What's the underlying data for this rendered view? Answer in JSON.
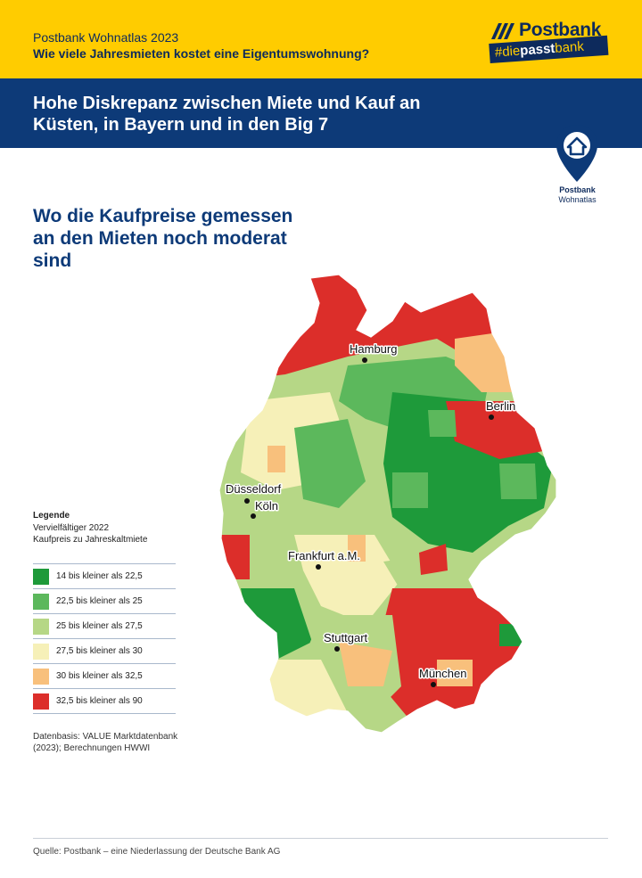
{
  "header": {
    "kicker": "Postbank Wohnatlas 2023",
    "question": "Wie viele Jahresmieten kostet eine Eigentumswohnung?",
    "headline": "Hohe Diskrepanz zwischen Miete und Kauf an Küsten, in Bayern und in den Big 7"
  },
  "logo": {
    "word": "Postbank",
    "hash_prefix": "#die",
    "hash_bold": "passt",
    "hash_suffix": "bank"
  },
  "badge": {
    "line1": "Postbank",
    "line2": "Wohnatlas"
  },
  "subheading": "Wo die Kaufpreise gemessen an den Mieten noch moderat sind",
  "legend": {
    "title": "Legende",
    "subtitle1": "Vervielfältiger 2022",
    "subtitle2": "Kaufpreis zu Jahreskaltmiete",
    "items": [
      {
        "label": "14 bis kleiner als 22,5",
        "color": "#1e9a3a"
      },
      {
        "label": "22,5 bis kleiner als 25",
        "color": "#5cb85c"
      },
      {
        "label": "25 bis kleiner als 27,5",
        "color": "#b6d786"
      },
      {
        "label": "27,5 bis kleiner als 30",
        "color": "#f6f0b8"
      },
      {
        "label": "30 bis kleiner als 32,5",
        "color": "#f8c07c"
      },
      {
        "label": "32,5 bis kleiner als 90",
        "color": "#dc2e2a"
      }
    ]
  },
  "cities": [
    {
      "name": "Hamburg"
    },
    {
      "name": "Berlin"
    },
    {
      "name": "Düsseldorf"
    },
    {
      "name": "Köln"
    },
    {
      "name": "Frankfurt a.M."
    },
    {
      "name": "Stuttgart"
    },
    {
      "name": "München"
    }
  ],
  "data_source": "Datenbasis: VALUE Marktdatenbank (2023); Berechnungen HWWI",
  "footer": "Quelle: Postbank – eine Niederlassung der Deutsche Bank AG",
  "colors": {
    "yellow": "#ffcc00",
    "navy": "#0d3a78"
  }
}
